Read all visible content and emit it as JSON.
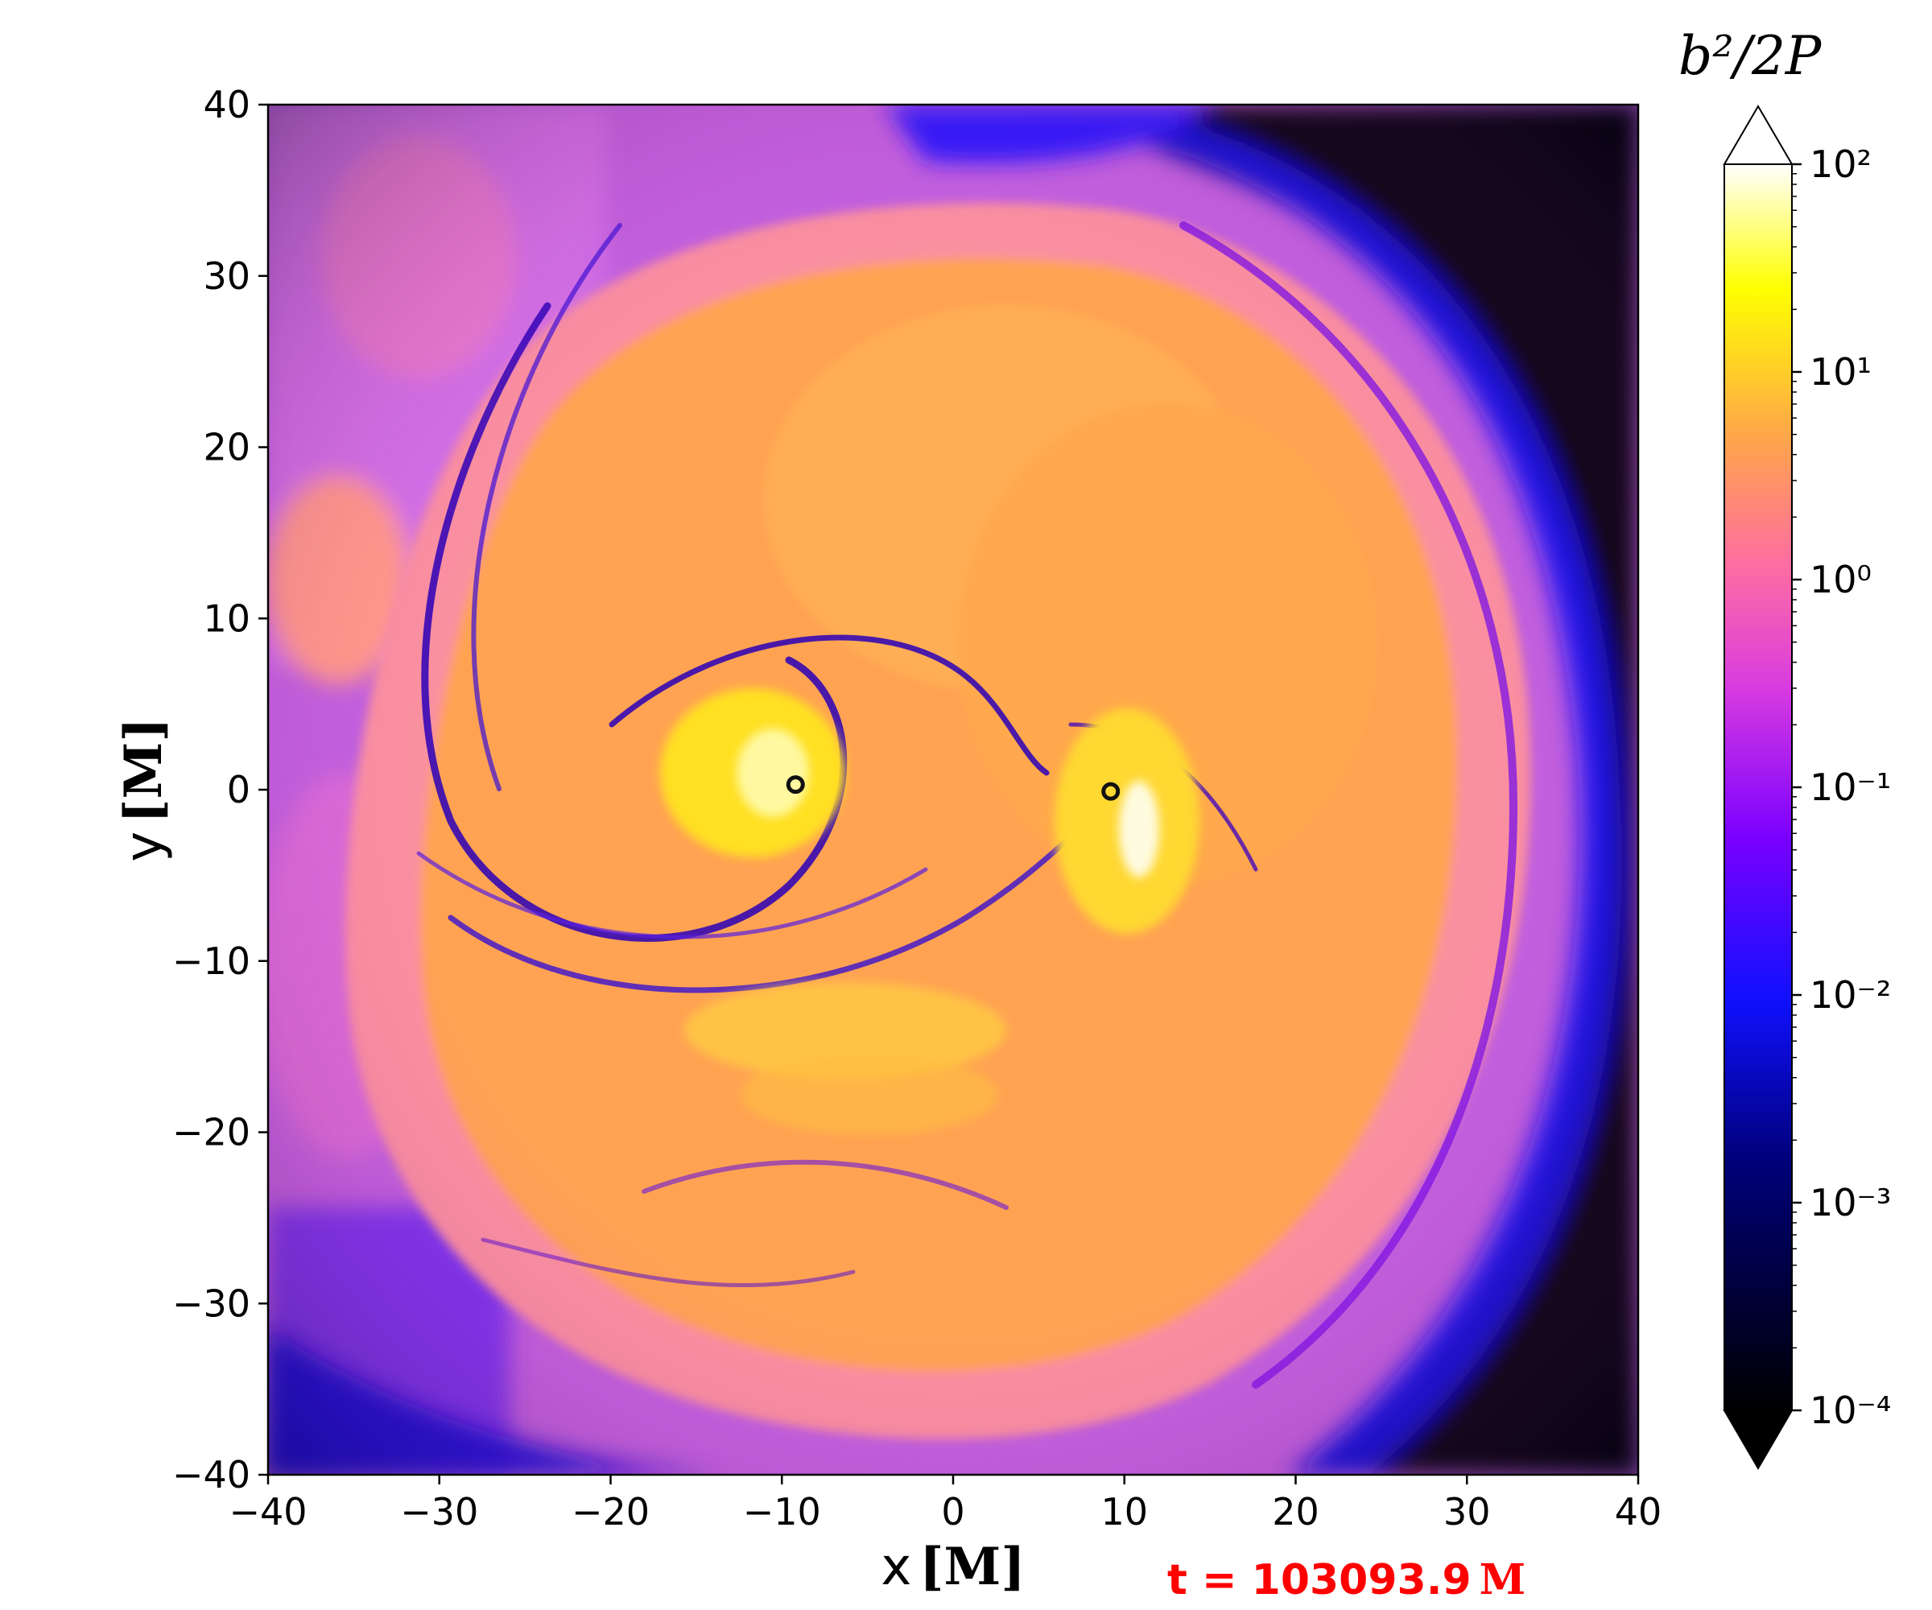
{
  "chart_data": {
    "type": "heatmap",
    "title": "",
    "xlabel": "x",
    "ylabel": "y",
    "unit_label": "[M]",
    "xlim": [
      -40,
      40
    ],
    "ylim": [
      -40,
      40
    ],
    "x_ticks": [
      -40,
      -30,
      -20,
      -10,
      0,
      10,
      20,
      30,
      40
    ],
    "y_ticks": [
      -40,
      -30,
      -20,
      -10,
      0,
      10,
      20,
      30,
      40
    ],
    "x_tick_labels": [
      "−40",
      "−30",
      "−20",
      "−10",
      "0",
      "10",
      "20",
      "30",
      "40"
    ],
    "y_tick_labels": [
      "−40",
      "−30",
      "−20",
      "−10",
      "0",
      "10",
      "20",
      "30",
      "40"
    ],
    "colorbar": {
      "title": "b²/2P",
      "scale": "log",
      "range": [
        0.0001,
        100
      ],
      "tick_values": [
        100,
        10,
        1,
        0.1,
        0.01,
        0.001,
        0.0001
      ],
      "tick_labels": [
        "10²",
        "10¹",
        "10⁰",
        "10⁻¹",
        "10⁻²",
        "10⁻³",
        "10⁻⁴"
      ],
      "extend": "both",
      "colormap": "gnuplot2-like",
      "colors": [
        "#000000",
        "#00008b",
        "#2020ff",
        "#8000ff",
        "#ff55c8",
        "#ffa040",
        "#ffff00",
        "#ffffff"
      ]
    },
    "markers": [
      {
        "name": "black hole 1",
        "x": -9.2,
        "y": 0.3
      },
      {
        "name": "black hole 2",
        "x": 9.2,
        "y": -0.1
      }
    ],
    "time_annotation": {
      "text": "t = 103093.9",
      "unit": "M"
    },
    "grid": false
  }
}
